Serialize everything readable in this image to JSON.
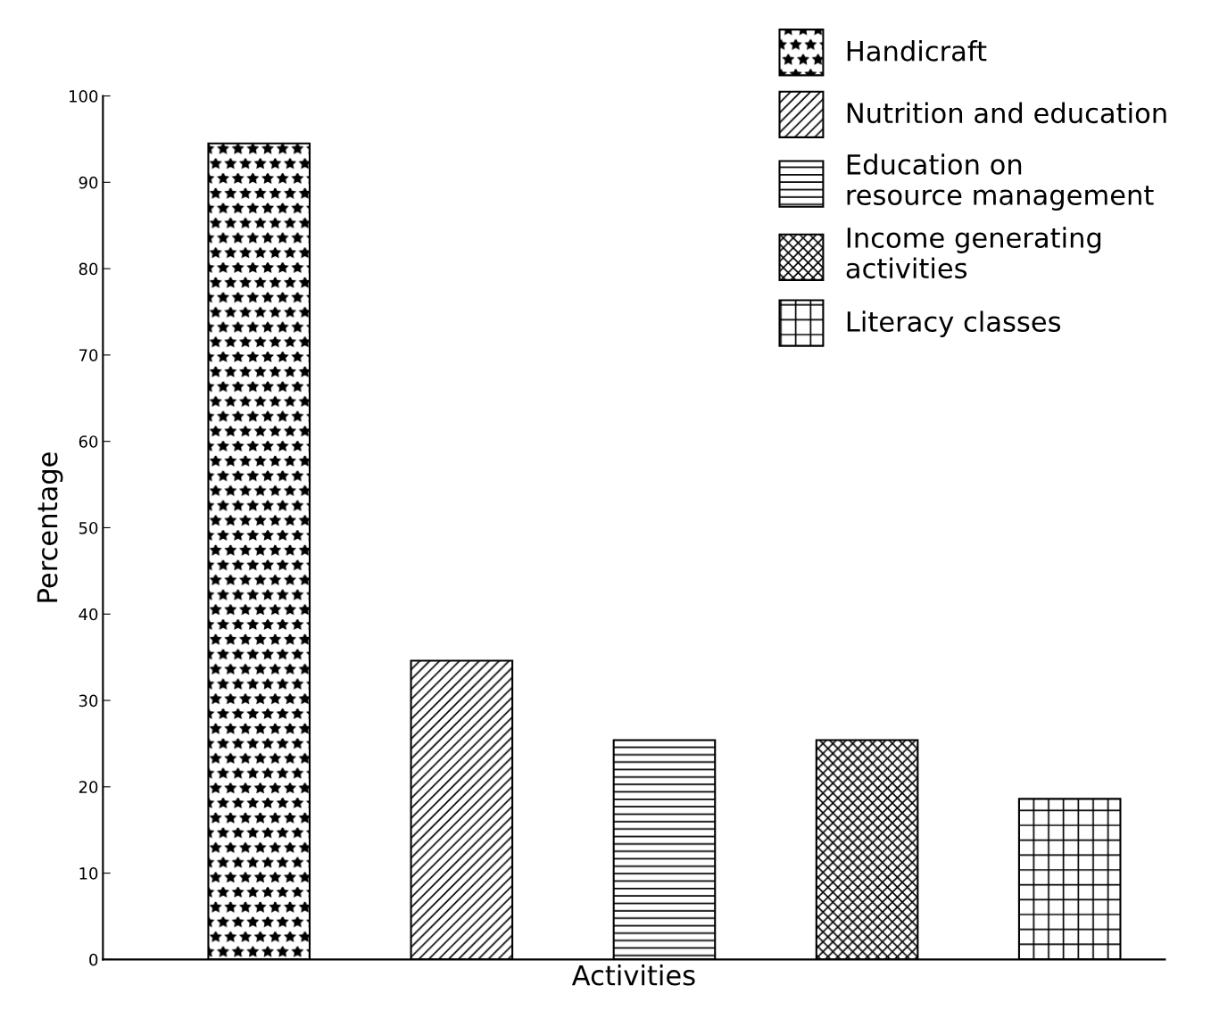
{
  "chart_data": {
    "type": "bar",
    "xlabel": "Activities",
    "ylabel": "Percentage",
    "categories": [
      null,
      null,
      null,
      null,
      null
    ],
    "series": [
      {
        "name": "Handicraft",
        "color": "#000000",
        "values": [
          94.5,
          null,
          null,
          null,
          null
        ]
      },
      {
        "name": "Nutrition and education",
        "color": "#000000",
        "values": [
          null,
          34.6,
          null,
          null,
          null
        ]
      },
      {
        "name": "Education on\nresource management",
        "color": "#000000",
        "values": [
          null,
          null,
          25.4,
          null,
          null
        ]
      },
      {
        "name": "Income generating\nactivities",
        "color": "#000000",
        "values": [
          null,
          null,
          null,
          25.4,
          null
        ]
      },
      {
        "name": "Literacy classes",
        "color": "#000000",
        "values": [
          null,
          null,
          null,
          null,
          18.6
        ]
      }
    ],
    "ylim": [
      0,
      100
    ],
    "yticks": [
      0,
      10,
      20,
      30,
      40,
      50,
      60,
      70,
      80,
      90,
      100
    ],
    "grid": false,
    "legend": "top right",
    "tick_labels": "y"
  }
}
